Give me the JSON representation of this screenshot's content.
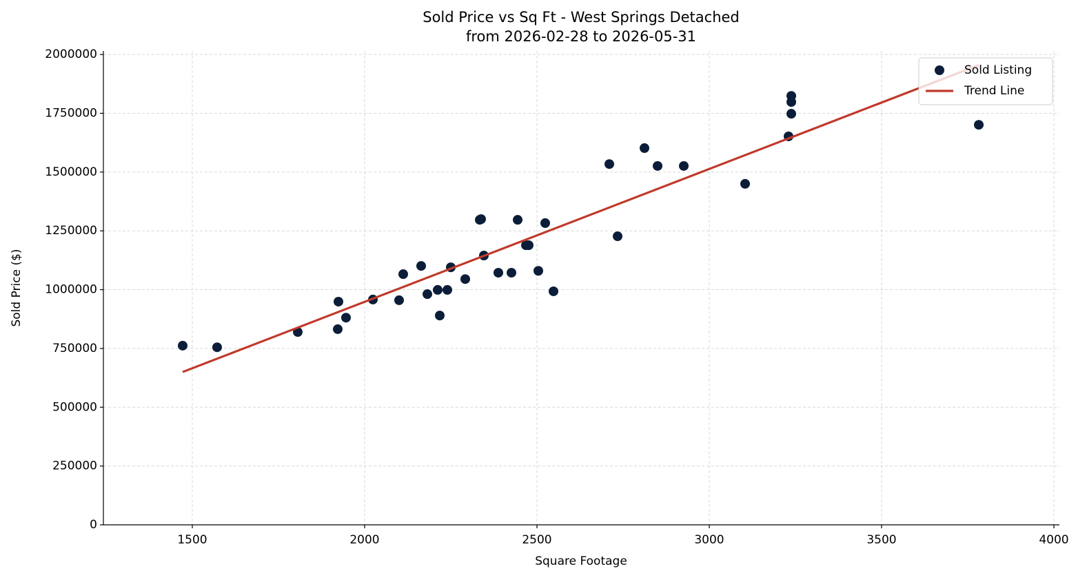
{
  "chart_data": {
    "type": "scatter",
    "title": "Sold Price vs Sq Ft - West Springs Detached",
    "subtitle": "from 2026-02-28 to 2026-05-31",
    "xlabel": "Square Footage",
    "ylabel": "Sold Price ($)",
    "xlim": [
      1242,
      4016
    ],
    "ylim": [
      0,
      2015000
    ],
    "xticks": [
      1500,
      2000,
      2500,
      3000,
      3500,
      4000
    ],
    "yticks": [
      0,
      250000,
      500000,
      750000,
      1000000,
      1250000,
      1500000,
      1750000,
      2000000
    ],
    "grid": true,
    "legend": "upper right",
    "series": [
      {
        "name": "Sold Listing",
        "type": "scatter",
        "color": "#0b1d38",
        "x": [
          1472,
          1572,
          1806,
          1922,
          1924,
          1946,
          2024,
          2100,
          2112,
          2164,
          2182,
          2212,
          2218,
          2240,
          2250,
          2292,
          2334,
          2338,
          2346,
          2388,
          2426,
          2444,
          2468,
          2476,
          2504,
          2524,
          2548,
          2710,
          2734,
          2812,
          2850,
          2926,
          3104,
          3230,
          3238,
          3238,
          3238,
          3782
        ],
        "values": [
          762000,
          755000,
          820000,
          832000,
          949000,
          881000,
          958000,
          955000,
          1066000,
          1101000,
          981000,
          999000,
          890000,
          999000,
          1095000,
          1045000,
          1297000,
          1300000,
          1145000,
          1072000,
          1072000,
          1297000,
          1189000,
          1189000,
          1080000,
          1283000,
          993000,
          1534000,
          1227000,
          1602000,
          1526000,
          1526000,
          1450000,
          1652000,
          1748000,
          1798000,
          1824000,
          1701000
        ]
      },
      {
        "name": "Trend Line",
        "type": "line",
        "color": "#c0392b",
        "x": [
          1472,
          3782
        ],
        "values": [
          650000,
          1955000
        ]
      }
    ]
  }
}
